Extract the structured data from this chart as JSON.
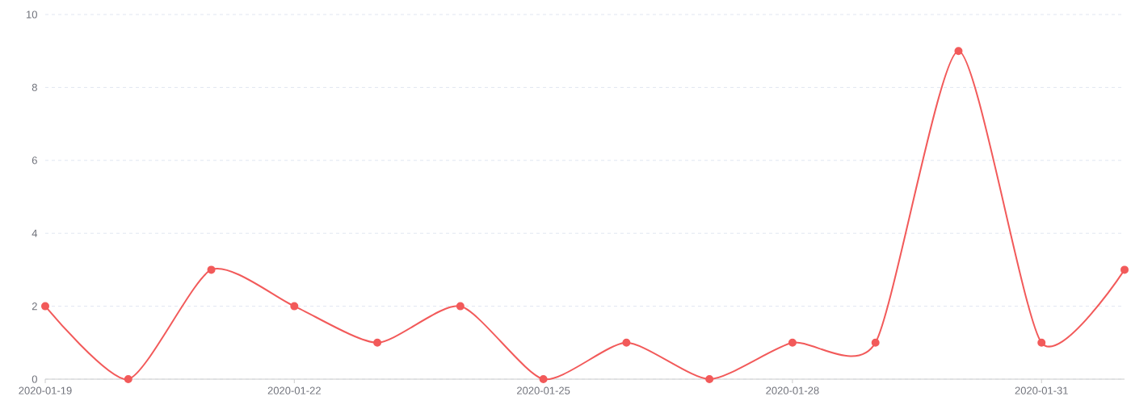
{
  "chart_data": {
    "type": "line",
    "categories": [
      "2020-01-19",
      null,
      null,
      "2020-01-22",
      null,
      null,
      "2020-01-25",
      null,
      null,
      "2020-01-28",
      null,
      null,
      "2020-01-31",
      null
    ],
    "series": [
      {
        "color": "#f25a5a",
        "values": [
          2,
          0,
          3,
          2,
          1,
          2,
          0,
          1,
          0,
          1,
          1,
          9,
          1,
          3
        ]
      }
    ],
    "ylim": [
      0,
      10
    ],
    "yticks": [
      0,
      2,
      4,
      6,
      8,
      10
    ],
    "grid": "y",
    "marker": "circle",
    "line_style": "solid"
  }
}
